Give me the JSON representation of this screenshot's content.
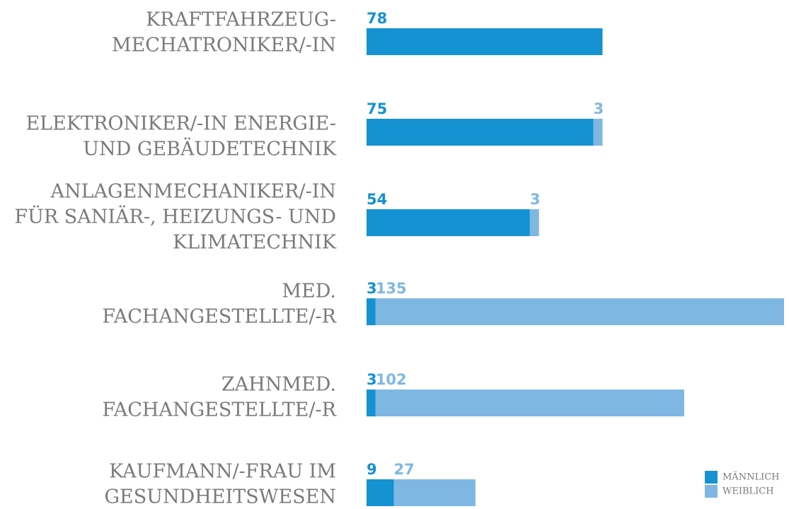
{
  "chart_data": {
    "type": "bar",
    "orientation": "horizontal",
    "stacked": true,
    "categories": [
      [
        "KRAFTFAHRZEUG-",
        "MECHATRONIKER/-IN"
      ],
      [
        "ELEKTRONIKER/-IN ENERGIE-",
        "UND GEBÄUDETECHNIK"
      ],
      [
        "ANLAGENMECHANIKER/-IN",
        "FÜR SANIÄR-, HEIZUNGS- UND",
        "KLIMATECHNIK"
      ],
      [
        "MED.",
        "FACHANGESTELLTE/-R"
      ],
      [
        "ZAHNMED.",
        "FACHANGESTELLTE/-R"
      ],
      [
        "KAUFMANN/-FRAU IM",
        "GESUNDHEITSWESEN"
      ]
    ],
    "series": [
      {
        "name": "MÄNNLICH",
        "color": "#1592d2",
        "label_color": "#1592d2",
        "values": [
          78,
          75,
          54,
          3,
          3,
          9
        ]
      },
      {
        "name": "WEIBLICH",
        "color": "#7fb7e3",
        "label_color": "#7fb7e3",
        "values": [
          null,
          3,
          3,
          135,
          102,
          27
        ]
      }
    ],
    "legend": "bottom-right"
  }
}
